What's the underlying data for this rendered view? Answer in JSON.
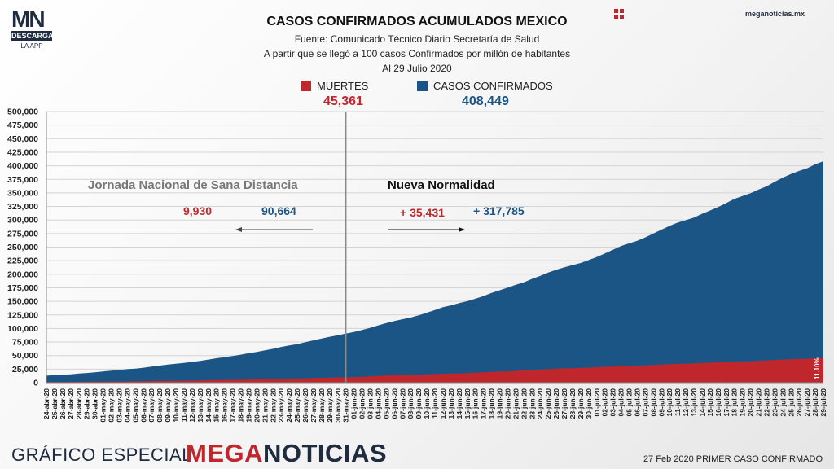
{
  "logo": {
    "mark": "MN",
    "sub": "DESCARGA",
    "app": "LA APP"
  },
  "site": "meganoticias.mx",
  "header": {
    "title": "CASOS CONFIRMADOS ACUMULADOS MEXICO",
    "source": "Fuente: Comunicado Técnico Diario Secretaría de Salud",
    "basis": "A partir que se llegó a 100 casos Confirmados por millón de habitantes",
    "date": "Al 29 Julio 2020"
  },
  "legend": {
    "deaths_label": "MUERTES",
    "deaths_total": "45,361",
    "deaths_color": "#c0272d",
    "cases_label": "CASOS CONFIRMADOS",
    "cases_total": "408,449",
    "cases_color": "#1b5586"
  },
  "annotations": {
    "phase1": "Jornada Nacional de Sana Distancia",
    "phase2": "Nueva Normalidad",
    "phase1_deaths": "9,930",
    "phase1_cases": "90,664",
    "phase2_deaths": "+ 35,431",
    "phase2_cases": "+ 317,785",
    "pct_label": "11.10%"
  },
  "footer": {
    "special": "GRÁFICO ESPECIAL",
    "brand_a": "MEGA",
    "brand_b": "NOTICIAS",
    "first_case": "27 Feb 2020 PRIMER CASO CONFIRMADO"
  },
  "chart_data": {
    "type": "area",
    "title": "CASOS CONFIRMADOS ACUMULADOS MEXICO",
    "ylim": [
      0,
      500000
    ],
    "yticks": [
      "0",
      "25,000",
      "50,000",
      "75,000",
      "100,000",
      "125,000",
      "150,000",
      "175,000",
      "200,000",
      "225,000",
      "250,000",
      "275,000",
      "300,000",
      "325,000",
      "350,000",
      "375,000",
      "400,000",
      "425,000",
      "450,000",
      "475,000",
      "500,000"
    ],
    "grid": true,
    "divider_at": "31-may-20",
    "categories": [
      "24-abr-20",
      "25-abr-20",
      "26-abr-20",
      "27-abr-20",
      "28-abr-20",
      "29-abr-20",
      "30-abr-20",
      "01-may-20",
      "02-may-20",
      "03-may-20",
      "04-may-20",
      "05-may-20",
      "06-may-20",
      "07-may-20",
      "08-may-20",
      "09-may-20",
      "10-may-20",
      "11-may-20",
      "12-may-20",
      "13-may-20",
      "14-may-20",
      "15-may-20",
      "16-may-20",
      "17-may-20",
      "18-may-20",
      "19-may-20",
      "20-may-20",
      "21-may-20",
      "22-may-20",
      "23-may-20",
      "24-may-20",
      "25-may-20",
      "26-may-20",
      "27-may-20",
      "28-may-20",
      "29-may-20",
      "30-may-20",
      "31-may-20",
      "01-jun-20",
      "02-jun-20",
      "03-jun-20",
      "04-jun-20",
      "05-jun-20",
      "06-jun-20",
      "07-jun-20",
      "08-jun-20",
      "09-jun-20",
      "10-jun-20",
      "11-jun-20",
      "12-jun-20",
      "13-jun-20",
      "14-jun-20",
      "15-jun-20",
      "16-jun-20",
      "17-jun-20",
      "18-jun-20",
      "19-jun-20",
      "20-jun-20",
      "21-jun-20",
      "22-jun-20",
      "23-jun-20",
      "24-jun-20",
      "25-jun-20",
      "26-jun-20",
      "27-jun-20",
      "28-jun-20",
      "29-jun-20",
      "30-jun-20",
      "01-jul-20",
      "02-jul-20",
      "03-jul-20",
      "04-jul-20",
      "05-jul-20",
      "06-jul-20",
      "07-jul-20",
      "08-jul-20",
      "09-jul-20",
      "10-jul-20",
      "11-jul-20",
      "12-jul-20",
      "13-jul-20",
      "14-jul-20",
      "15-jul-20",
      "16-jul-20",
      "17-jul-20",
      "18-jul-20",
      "19-jul-20",
      "20-jul-20",
      "21-jul-20",
      "22-jul-20",
      "23-jul-20",
      "24-jul-20",
      "25-jul-20",
      "26-jul-20",
      "27-jul-20",
      "28-jul-20",
      "29-jul-20"
    ],
    "series": [
      {
        "name": "CASOS CONFIRMADOS",
        "color": "#1b5586",
        "values": [
          12872,
          13842,
          14677,
          15529,
          16752,
          17799,
          19224,
          20739,
          22088,
          23471,
          24905,
          26025,
          27634,
          29616,
          31522,
          33460,
          35022,
          36327,
          38324,
          40186,
          42595,
          45032,
          47144,
          49219,
          51633,
          54346,
          56594,
          59567,
          62527,
          65856,
          68620,
          71105,
          74560,
          78023,
          81400,
          84627,
          87512,
          90664,
          93435,
          97326,
          101238,
          105680,
          110026,
          113619,
          117103,
          120102,
          124301,
          129184,
          133974,
          139196,
          142690,
          146837,
          150264,
          154863,
          159793,
          165455,
          170485,
          175202,
          180545,
          185122,
          191410,
          196847,
          202951,
          208392,
          212802,
          216852,
          220657,
          226089,
          231770,
          238511,
          245251,
          252165,
          256848,
          261750,
          268008,
          275003,
          282283,
          289174,
          295268,
          299750,
          304435,
          311486,
          317635,
          324041,
          331298,
          338913,
          344224,
          349396,
          356255,
          362274,
          370712,
          378285,
          385036,
          390516,
          395489,
          402697,
          408449
        ]
      },
      {
        "name": "MUERTES",
        "color": "#c0272d",
        "values": [
          1221,
          1305,
          1351,
          1434,
          1569,
          1732,
          1859,
          1972,
          2061,
          2154,
          2271,
          2507,
          2704,
          2961,
          3160,
          3353,
          3465,
          3573,
          3926,
          4220,
          4477,
          4767,
          5045,
          5177,
          5332,
          5666,
          6090,
          6510,
          6989,
          7179,
          7394,
          7633,
          8134,
          8597,
          9044,
          9415,
          9779,
          9930,
          10167,
          10637,
          11729,
          12545,
          13170,
          13511,
          13699,
          14053,
          14649,
          15357,
          15944,
          16448,
          16872,
          17141,
          17580,
          18310,
          19080,
          19747,
          20394,
          20781,
          21825,
          22584,
          23377,
          24324,
          25060,
          25779,
          26381,
          26648,
          27121,
          27769,
          28510,
          29189,
          29843,
          30366,
          30639,
          31119,
          32014,
          32796,
          33526,
          34191,
          34730,
          35006,
          35491,
          36327,
          36906,
          37574,
          38310,
          38888,
          39184,
          39485,
          40400,
          41190,
          41908,
          42645,
          43374,
          43680,
          44022,
          44876,
          45361
        ]
      }
    ]
  }
}
